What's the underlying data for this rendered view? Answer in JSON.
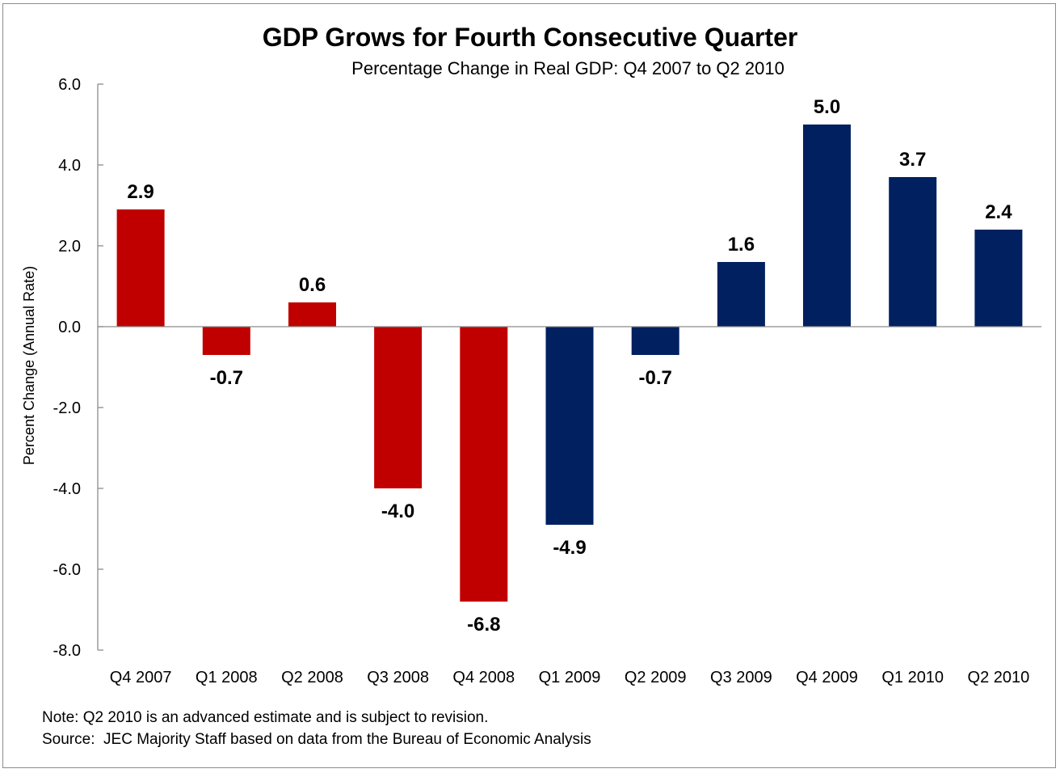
{
  "chart_data": {
    "type": "bar",
    "title": "GDP Grows for Fourth Consecutive Quarter",
    "subtitle": "Percentage Change in Real GDP: Q4 2007 to Q2 2010",
    "xlabel": "",
    "ylabel": "Percent Change (Annual Rate)",
    "ylim": [
      -8.0,
      6.0
    ],
    "yticks": [
      6.0,
      4.0,
      2.0,
      0.0,
      -2.0,
      -4.0,
      -6.0,
      -8.0
    ],
    "ytick_labels": [
      "6.0",
      "4.0",
      "2.0",
      "0.0",
      "-2.0",
      "-4.0",
      "-6.0",
      "-8.0"
    ],
    "grid": false,
    "categories": [
      "Q4 2007",
      "Q1 2008",
      "Q2 2008",
      "Q3 2008",
      "Q4 2008",
      "Q1 2009",
      "Q2 2009",
      "Q3 2009",
      "Q4 2009",
      "Q1 2010",
      "Q2 2010"
    ],
    "values": [
      2.9,
      -0.7,
      0.6,
      -4.0,
      -6.8,
      -4.9,
      -0.7,
      1.6,
      5.0,
      3.7,
      2.4
    ],
    "data_labels": [
      "2.9",
      "-0.7",
      "0.6",
      "-4.0",
      "-6.8",
      "-4.9",
      "-0.7",
      "1.6",
      "5.0",
      "3.7",
      "2.4"
    ],
    "bar_colors": [
      "#C00000",
      "#C00000",
      "#C00000",
      "#C00000",
      "#C00000",
      "#002060",
      "#002060",
      "#002060",
      "#002060",
      "#002060",
      "#002060"
    ],
    "legend": null
  },
  "footer": {
    "note": "Note: Q2 2010 is an advanced estimate and is subject to revision.",
    "source": "Source:  JEC Majority Staff based on data from the Bureau of Economic Analysis"
  }
}
